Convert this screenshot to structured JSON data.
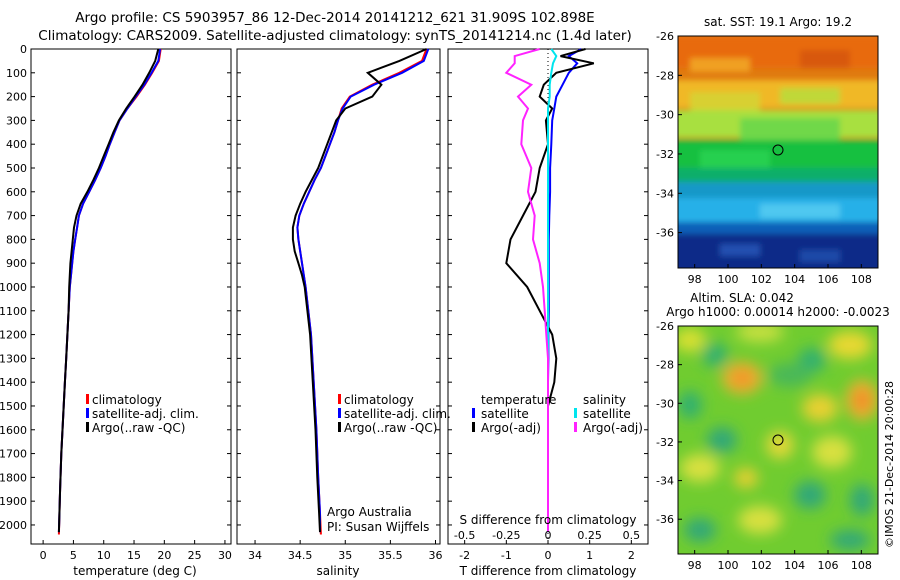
{
  "header": {
    "line1": "Argo profile: CS 5903957_86 12-Dec-2014 20141212_621 31.909S 102.898E",
    "line2": "Climatology: CARS2009. Satellite-adjusted climatology: synTS_20141214.nc (1.4d later)"
  },
  "watermark": "©IMOS 21-Dec-2014 20:00:28",
  "credit": {
    "line1": "Argo Australia",
    "line2": "PI: Susan Wijffels"
  },
  "colors": {
    "climatology": "#ff0000",
    "satellite": "#0000ff",
    "argo": "#000000",
    "sat_sal": "#00e5ee",
    "argo_sal": "#ff22ff"
  },
  "chart_data": [
    {
      "type": "line",
      "xlabel": "temperature (deg C)",
      "ylabel": "",
      "xlim": [
        -2,
        31
      ],
      "ylim": [
        2080,
        0
      ],
      "xticks": [
        "0",
        "5",
        "10",
        "15",
        "20",
        "25",
        "30"
      ],
      "yticks": [
        "0",
        "100",
        "200",
        "300",
        "400",
        "500",
        "600",
        "700",
        "800",
        "900",
        "1000",
        "1100",
        "1200",
        "1300",
        "1400",
        "1500",
        "1600",
        "1700",
        "1800",
        "1900",
        "2000"
      ],
      "legend": [
        "climatology",
        "satellite-adj. clim.",
        "Argo(..raw -QC)"
      ],
      "series": [
        {
          "name": "climatology",
          "x": [
            19.4,
            19.1,
            18.0,
            16.8,
            15.4,
            13.9,
            12.6,
            11.8,
            11.0,
            10.3,
            9.5,
            8.6,
            7.6,
            6.6,
            5.9,
            5.6,
            5.3,
            5.0,
            4.8,
            4.6,
            4.4,
            4.2,
            4.0,
            3.8,
            3.6,
            3.4,
            3.2,
            3.0,
            2.8,
            2.6
          ],
          "y": [
            0,
            50,
            100,
            150,
            200,
            250,
            300,
            350,
            400,
            450,
            500,
            550,
            600,
            650,
            700,
            750,
            800,
            850,
            900,
            950,
            1000,
            1100,
            1200,
            1300,
            1400,
            1500,
            1600,
            1700,
            1850,
            2040
          ]
        },
        {
          "name": "satellite",
          "x": [
            19.3,
            19.0,
            17.9,
            16.7,
            15.3,
            13.9,
            12.6,
            11.8,
            11.0,
            10.3,
            9.5,
            8.6,
            7.6,
            6.6,
            5.9,
            5.6,
            5.3,
            5.0,
            4.8,
            4.6,
            4.4,
            4.2,
            4.0,
            3.8,
            3.6,
            3.4,
            3.2,
            3.0,
            2.8,
            2.6
          ],
          "y": [
            0,
            50,
            100,
            150,
            200,
            250,
            300,
            350,
            400,
            450,
            500,
            550,
            600,
            650,
            700,
            750,
            800,
            850,
            900,
            950,
            1000,
            1100,
            1200,
            1300,
            1400,
            1500,
            1600,
            1700,
            1850,
            2030
          ]
        },
        {
          "name": "Argo",
          "x": [
            19.0,
            18.5,
            17.5,
            16.4,
            15.1,
            13.7,
            12.5,
            11.6,
            10.8,
            10.0,
            9.2,
            8.3,
            7.3,
            6.2,
            5.5,
            5.1,
            4.9,
            4.7,
            4.5,
            4.4,
            4.3,
            4.2,
            4.0,
            3.8,
            3.6,
            3.4,
            3.2,
            3.0,
            2.8,
            2.6
          ],
          "y": [
            0,
            50,
            100,
            150,
            200,
            250,
            300,
            350,
            400,
            450,
            500,
            550,
            600,
            650,
            700,
            750,
            800,
            850,
            900,
            950,
            1000,
            1100,
            1200,
            1300,
            1400,
            1500,
            1600,
            1700,
            1850,
            2030
          ]
        }
      ]
    },
    {
      "type": "line",
      "xlabel": "salinity",
      "ylabel": "",
      "xlim": [
        33.8,
        36.05
      ],
      "ylim": [
        2080,
        0
      ],
      "xticks": [
        "34",
        "34.5",
        "35",
        "35.5",
        "36"
      ],
      "legend": [
        "climatology",
        "satellite-adj. clim.",
        "Argo(..raw -QC)"
      ],
      "series": [
        {
          "name": "climatology",
          "x": [
            35.9,
            35.85,
            35.6,
            35.3,
            35.05,
            34.96,
            34.92,
            34.88,
            34.83,
            34.78,
            34.73,
            34.66,
            34.6,
            34.54,
            34.49,
            34.47,
            34.48,
            34.5,
            34.52,
            34.54,
            34.56,
            34.59,
            34.62,
            34.65,
            34.68,
            34.7,
            34.72,
            34.73
          ],
          "y": [
            0,
            50,
            100,
            150,
            200,
            250,
            300,
            350,
            400,
            450,
            500,
            550,
            600,
            650,
            700,
            750,
            800,
            850,
            900,
            950,
            1000,
            1100,
            1200,
            1400,
            1600,
            1800,
            1950,
            2040
          ]
        },
        {
          "name": "satellite",
          "x": [
            35.92,
            35.87,
            35.63,
            35.32,
            35.06,
            34.97,
            34.92,
            34.88,
            34.83,
            34.78,
            34.73,
            34.66,
            34.6,
            34.54,
            34.49,
            34.47,
            34.48,
            34.5,
            34.52,
            34.54,
            34.56,
            34.59,
            34.62,
            34.65,
            34.68,
            34.7,
            34.72,
            34.72
          ],
          "y": [
            0,
            50,
            100,
            150,
            200,
            250,
            300,
            350,
            400,
            450,
            500,
            550,
            600,
            650,
            700,
            750,
            800,
            850,
            900,
            950,
            1000,
            1100,
            1200,
            1400,
            1600,
            1800,
            1950,
            2030
          ]
        },
        {
          "name": "Argo",
          "x": [
            35.9,
            35.6,
            35.25,
            35.4,
            35.3,
            35.0,
            34.9,
            34.85,
            34.8,
            34.75,
            34.7,
            34.63,
            34.56,
            34.5,
            34.45,
            34.42,
            34.42,
            34.44,
            34.48,
            34.52,
            34.55,
            34.58,
            34.61,
            34.64,
            34.67,
            34.69,
            34.71,
            34.72
          ],
          "y": [
            0,
            50,
            100,
            150,
            200,
            250,
            300,
            350,
            400,
            450,
            500,
            550,
            600,
            650,
            700,
            750,
            800,
            850,
            900,
            950,
            1000,
            1100,
            1200,
            1400,
            1600,
            1800,
            1950,
            2030
          ]
        }
      ]
    },
    {
      "type": "line",
      "xlabel": "T difference from climatology",
      "top_label": "S difference from climatology",
      "xlim": [
        -2.4,
        2.4
      ],
      "ylim": [
        2080,
        0
      ],
      "xticks_bottom": [
        "-2",
        "-1",
        "0",
        "1",
        "2"
      ],
      "xticks_top": [
        "-0.5",
        "-0.25",
        "0",
        "0.25",
        "0.5"
      ],
      "legend_temperature": {
        "title": "temperature",
        "items": [
          "satellite",
          "Argo(-adj)"
        ]
      },
      "legend_salinity": {
        "title": "salinity",
        "items": [
          "satellite",
          "Argo(-adj)"
        ]
      },
      "series": [
        {
          "name": "temperature satellite",
          "x": [
            0.8,
            0.5,
            0.7,
            0.5,
            0.35,
            0.2,
            0.15,
            0.1,
            0.08,
            0.05,
            0.05,
            0.03,
            0.02,
            0.02,
            0.02,
            0.02,
            0.01,
            0.01,
            0.0,
            0.0,
            0.0,
            0.0,
            0.0
          ],
          "y": [
            0,
            30,
            60,
            100,
            150,
            200,
            250,
            300,
            400,
            500,
            600,
            700,
            800,
            900,
            1000,
            1100,
            1200,
            1300,
            1400,
            1500,
            1600,
            1800,
            2030
          ]
        },
        {
          "name": "temperature Argo(-adj)",
          "x": [
            0.9,
            0.3,
            1.1,
            0.2,
            -0.1,
            -0.2,
            0.1,
            -0.05,
            0.0,
            -0.2,
            -0.3,
            -0.6,
            -0.9,
            -1.0,
            -0.5,
            -0.2,
            0.1,
            0.2,
            0.15,
            0.0,
            0.0,
            0.0,
            0.0
          ],
          "y": [
            0,
            30,
            60,
            100,
            150,
            200,
            250,
            300,
            400,
            500,
            600,
            700,
            800,
            900,
            1000,
            1100,
            1200,
            1300,
            1400,
            1500,
            1600,
            1800,
            2030
          ]
        },
        {
          "name": "salinity satellite",
          "x": [
            0.02,
            0.05,
            0.03,
            0.02,
            0.01,
            0.01,
            0.0,
            0.0,
            0.0,
            0.0,
            0.0,
            0.0,
            0.0,
            0.0,
            0.0,
            0.0,
            0.0,
            0.0,
            0.0,
            0.0,
            0.0,
            0.0,
            0.0
          ],
          "y": [
            0,
            30,
            60,
            100,
            150,
            200,
            250,
            300,
            400,
            500,
            600,
            700,
            800,
            900,
            1000,
            1100,
            1200,
            1300,
            1400,
            1500,
            1600,
            1800,
            2030
          ]
        },
        {
          "name": "salinity Argo(-adj)",
          "x": [
            -0.05,
            -0.2,
            -0.2,
            -0.25,
            -0.1,
            -0.18,
            -0.12,
            -0.15,
            -0.16,
            -0.1,
            -0.12,
            -0.08,
            -0.09,
            -0.05,
            -0.03,
            -0.02,
            -0.01,
            0.0,
            0.0,
            0.0,
            0.0,
            0.0,
            0.0
          ],
          "y": [
            0,
            30,
            60,
            100,
            150,
            200,
            250,
            300,
            400,
            500,
            600,
            700,
            800,
            900,
            1000,
            1100,
            1200,
            1300,
            1400,
            1500,
            1600,
            1800,
            2030
          ]
        }
      ]
    },
    {
      "type": "heatmap",
      "title": "sat. SST: 19.1 Argo: 19.2",
      "xlim": [
        97,
        109
      ],
      "ylim": [
        -37.8,
        -26
      ],
      "xticks": [
        "98",
        "100",
        "102",
        "104",
        "106",
        "108"
      ],
      "yticks": [
        "-26",
        "-28",
        "-30",
        "-32",
        "-34",
        "-36"
      ],
      "marker": {
        "lon": 102.9,
        "lat": -31.9
      }
    },
    {
      "type": "heatmap",
      "title_line1": "Altim. SLA: 0.042",
      "title_line2": "Argo h1000: 0.00014 h2000: -0.0023",
      "xlim": [
        97,
        109
      ],
      "ylim": [
        -37.8,
        -26
      ],
      "xticks": [
        "98",
        "100",
        "102",
        "104",
        "106",
        "108"
      ],
      "yticks": [
        "-26",
        "-28",
        "-30",
        "-32",
        "-34",
        "-36"
      ],
      "marker": {
        "lon": 102.9,
        "lat": -31.9
      }
    }
  ]
}
